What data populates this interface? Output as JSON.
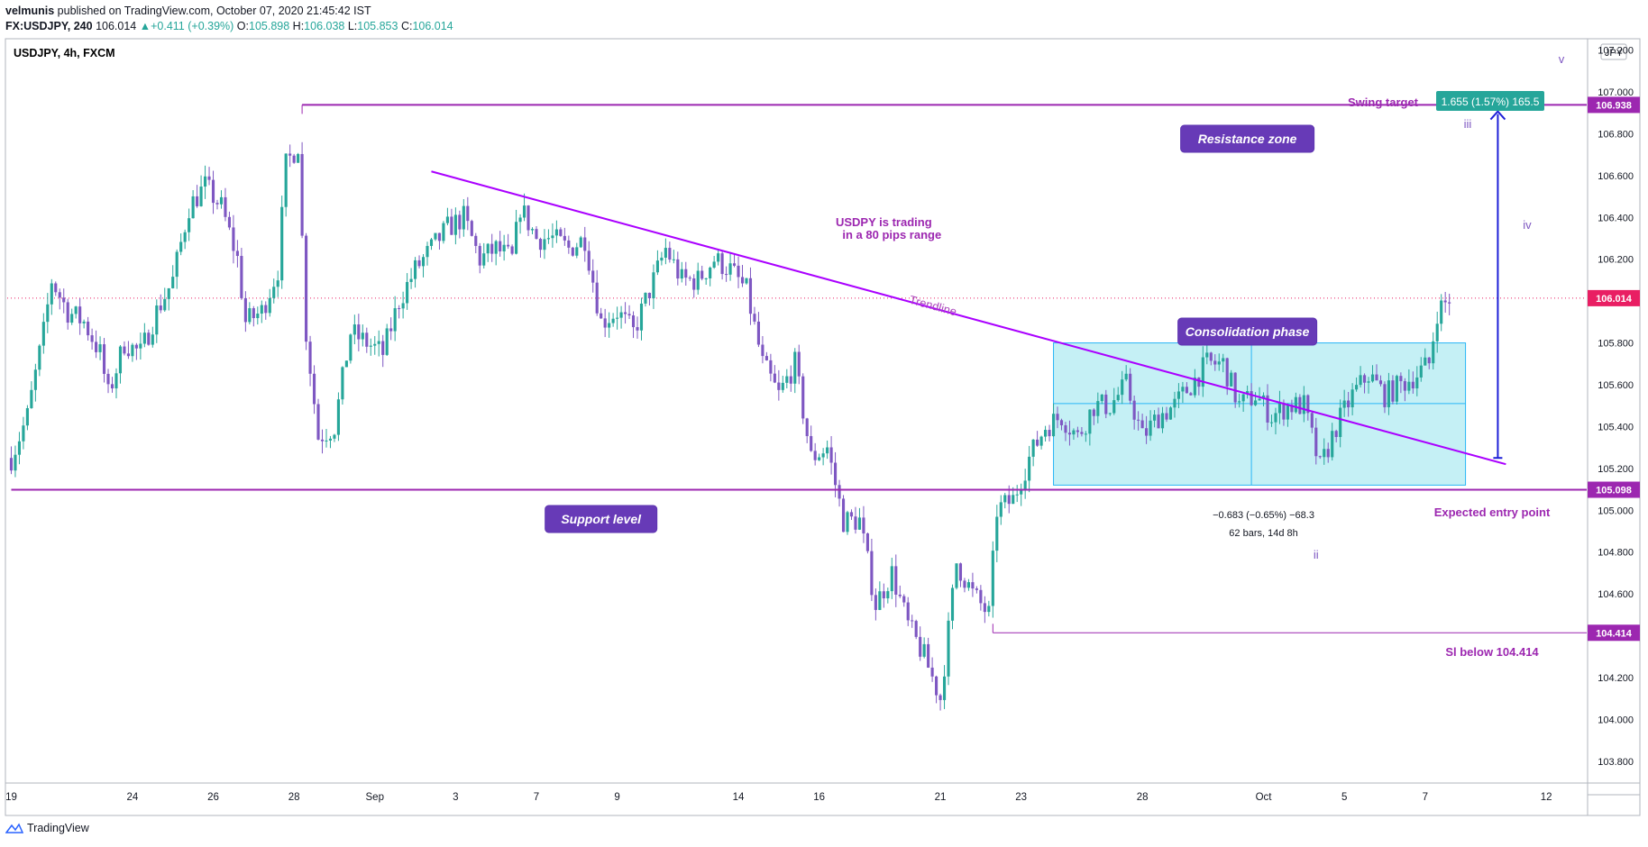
{
  "header": {
    "author": "velmunis",
    "published_text": "published on TradingView.com, October 07, 2020 21:45:42 IST",
    "symbol": "FX:USDJPY, 240",
    "last": "106.014",
    "change": "+0.411 (+0.39%)",
    "open_label": "O:",
    "open": "105.898",
    "high_label": "H:",
    "high": "106.038",
    "low_label": "L:",
    "low": "105.853",
    "close_label": "C:",
    "close": "106.014"
  },
  "footer": {
    "brand": "TradingView"
  },
  "chart_data": {
    "type": "candlestick",
    "title": "USDJPY, 4h, FXCM",
    "currency": "JPY",
    "ylim": [
      103.7,
      107.25
    ],
    "y_ticks": [
      "107.200",
      "107.000",
      "106.800",
      "106.600",
      "106.400",
      "106.200",
      "106.000",
      "105.800",
      "105.600",
      "105.400",
      "105.200",
      "105.000",
      "104.800",
      "104.600",
      "104.400",
      "104.200",
      "104.000",
      "103.800"
    ],
    "x_ticks": [
      {
        "label": "19",
        "bar": 0
      },
      {
        "label": "24",
        "bar": 30
      },
      {
        "label": "26",
        "bar": 50
      },
      {
        "label": "28",
        "bar": 70
      },
      {
        "label": "Sep",
        "bar": 90
      },
      {
        "label": "3",
        "bar": 110
      },
      {
        "label": "7",
        "bar": 130
      },
      {
        "label": "9",
        "bar": 150
      },
      {
        "label": "14",
        "bar": 180
      },
      {
        "label": "16",
        "bar": 200
      },
      {
        "label": "21",
        "bar": 230
      },
      {
        "label": "23",
        "bar": 250
      },
      {
        "label": "28",
        "bar": 280
      },
      {
        "label": "Oct",
        "bar": 310
      },
      {
        "label": "5",
        "bar": 330
      },
      {
        "label": "7",
        "bar": 350
      },
      {
        "label": "12",
        "bar": 380
      }
    ],
    "bar_range": [
      -1,
      390
    ],
    "colors": {
      "up": "#26a69a",
      "down": "#7e57c2",
      "line": "#9c27b0",
      "accent": "#26a69a",
      "last_price": "#e91e63"
    },
    "price_labels": [
      {
        "value": 106.938,
        "label": "106.938",
        "color": "#9c27b0"
      },
      {
        "value": 106.014,
        "label": "106.014",
        "color": "#e91e63"
      },
      {
        "value": 105.098,
        "label": "105.098",
        "color": "#9c27b0"
      },
      {
        "value": 104.414,
        "label": "104.414",
        "color": "#9c27b0"
      }
    ],
    "anchors": [
      [
        0,
        105.25
      ],
      [
        4,
        105.45
      ],
      [
        8,
        105.85
      ],
      [
        10,
        106.1
      ],
      [
        14,
        105.95
      ],
      [
        18,
        105.9
      ],
      [
        22,
        105.75
      ],
      [
        24,
        105.55
      ],
      [
        28,
        105.8
      ],
      [
        32,
        105.75
      ],
      [
        36,
        105.95
      ],
      [
        40,
        106.1
      ],
      [
        44,
        106.45
      ],
      [
        48,
        106.55
      ],
      [
        52,
        106.45
      ],
      [
        56,
        106.2
      ],
      [
        58,
        105.9
      ],
      [
        62,
        105.95
      ],
      [
        66,
        106.15
      ],
      [
        68,
        106.65
      ],
      [
        71,
        106.75
      ],
      [
        73,
        105.85
      ],
      [
        76,
        105.35
      ],
      [
        80,
        105.4
      ],
      [
        84,
        105.85
      ],
      [
        88,
        105.8
      ],
      [
        92,
        105.75
      ],
      [
        96,
        106.0
      ],
      [
        100,
        106.15
      ],
      [
        104,
        106.25
      ],
      [
        108,
        106.35
      ],
      [
        112,
        106.4
      ],
      [
        116,
        106.2
      ],
      [
        120,
        106.25
      ],
      [
        124,
        106.2
      ],
      [
        126,
        106.45
      ],
      [
        130,
        106.3
      ],
      [
        134,
        106.3
      ],
      [
        138,
        106.25
      ],
      [
        142,
        106.3
      ],
      [
        146,
        105.9
      ],
      [
        150,
        105.95
      ],
      [
        154,
        105.85
      ],
      [
        158,
        106.05
      ],
      [
        162,
        106.25
      ],
      [
        166,
        106.1
      ],
      [
        170,
        106.1
      ],
      [
        174,
        106.2
      ],
      [
        178,
        106.15
      ],
      [
        182,
        106.05
      ],
      [
        186,
        105.7
      ],
      [
        190,
        105.55
      ],
      [
        194,
        105.7
      ],
      [
        198,
        105.25
      ],
      [
        202,
        105.3
      ],
      [
        206,
        104.95
      ],
      [
        210,
        104.95
      ],
      [
        214,
        104.55
      ],
      [
        218,
        104.7
      ],
      [
        222,
        104.45
      ],
      [
        226,
        104.3
      ],
      [
        230,
        104.1
      ],
      [
        234,
        104.75
      ],
      [
        238,
        104.6
      ],
      [
        242,
        104.5
      ],
      [
        244,
        105.0
      ],
      [
        248,
        105.05
      ],
      [
        252,
        105.25
      ],
      [
        256,
        105.4
      ],
      [
        260,
        105.45
      ],
      [
        264,
        105.35
      ],
      [
        268,
        105.5
      ],
      [
        272,
        105.5
      ],
      [
        276,
        105.6
      ],
      [
        280,
        105.35
      ],
      [
        284,
        105.45
      ],
      [
        288,
        105.5
      ],
      [
        292,
        105.6
      ],
      [
        296,
        105.7
      ],
      [
        300,
        105.7
      ],
      [
        304,
        105.5
      ],
      [
        308,
        105.55
      ],
      [
        312,
        105.45
      ],
      [
        316,
        105.5
      ],
      [
        320,
        105.5
      ],
      [
        324,
        105.2
      ],
      [
        328,
        105.4
      ],
      [
        332,
        105.55
      ],
      [
        336,
        105.65
      ],
      [
        340,
        105.55
      ],
      [
        344,
        105.6
      ],
      [
        348,
        105.65
      ],
      [
        351,
        105.7
      ],
      [
        353,
        105.95
      ],
      [
        356,
        106.01
      ]
    ],
    "last_bar": 356,
    "drawings": {
      "trendline": {
        "label": "Trendline",
        "from": [
          104,
          106.62
        ],
        "to": [
          370,
          105.22
        ]
      },
      "resistance": {
        "value": 106.938,
        "from_bar": 72
      },
      "support": {
        "value": 105.098,
        "from_bar": 0
      },
      "stop_line": {
        "value": 104.414,
        "from_bar": 243
      },
      "target_arrow": {
        "bar": 368,
        "from": 105.25,
        "to": 106.92
      },
      "consolidation_box": {
        "from_bar": 258,
        "to_bar": 360,
        "top": 105.8,
        "bottom": 105.12
      },
      "last_price_line": 106.014
    },
    "annotations": {
      "resistance_zone": "Resistance zone",
      "support_level": "Support level",
      "consolidation_phase": "Consolidation phase",
      "range_note_line1": "USDPY is trading",
      "range_note_line2": "in a 80 pips range",
      "swing_target": "Swing target",
      "swing_target_box": "1.655 (1.57%) 165.5",
      "expected_entry": "Expected entry point",
      "stop_note": "Sl below 104.414",
      "measure_line1": "−0.683 (−0.65%) −68.3",
      "measure_line2": "62 bars, 14d 8h",
      "wave_v": "v",
      "wave_iii": "iii",
      "wave_iv": "iv",
      "wave_ii": "ii"
    }
  }
}
